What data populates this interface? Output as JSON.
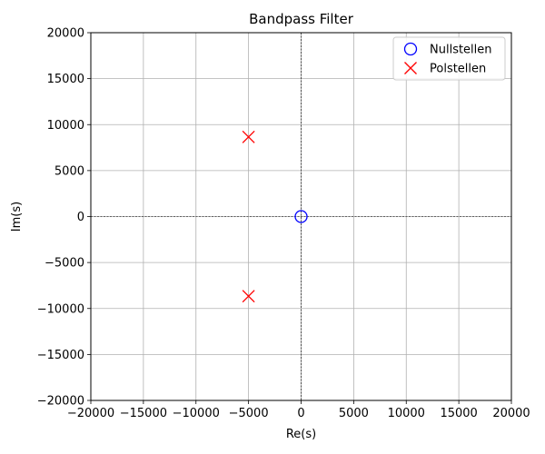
{
  "chart_data": {
    "type": "scatter",
    "title": "Bandpass Filter",
    "xlabel": "Re(s)",
    "ylabel": "Im(s)",
    "xlim": [
      -20000,
      20000
    ],
    "ylim": [
      -20000,
      20000
    ],
    "x_ticks": [
      -20000,
      -15000,
      -10000,
      -5000,
      0,
      5000,
      10000,
      15000,
      20000
    ],
    "y_ticks": [
      -20000,
      -15000,
      -10000,
      -5000,
      0,
      5000,
      10000,
      15000,
      20000
    ],
    "x_tick_labels": [
      "−20000",
      "−15000",
      "−10000",
      "−5000",
      "0",
      "5000",
      "10000",
      "15000",
      "20000"
    ],
    "y_tick_labels": [
      "−20000",
      "−15000",
      "−10000",
      "−5000",
      "0",
      "5000",
      "10000",
      "15000",
      "20000"
    ],
    "grid": true,
    "zero_lines": true,
    "legend_position": "top-right",
    "series": [
      {
        "name": "Nullstellen",
        "marker": "circle-open",
        "color": "#0000ff",
        "points": [
          [
            0,
            0
          ]
        ]
      },
      {
        "name": "Polstellen",
        "marker": "x",
        "color": "#ff0000",
        "points": [
          [
            -5000,
            8660
          ],
          [
            -5000,
            -8660
          ]
        ]
      }
    ]
  }
}
